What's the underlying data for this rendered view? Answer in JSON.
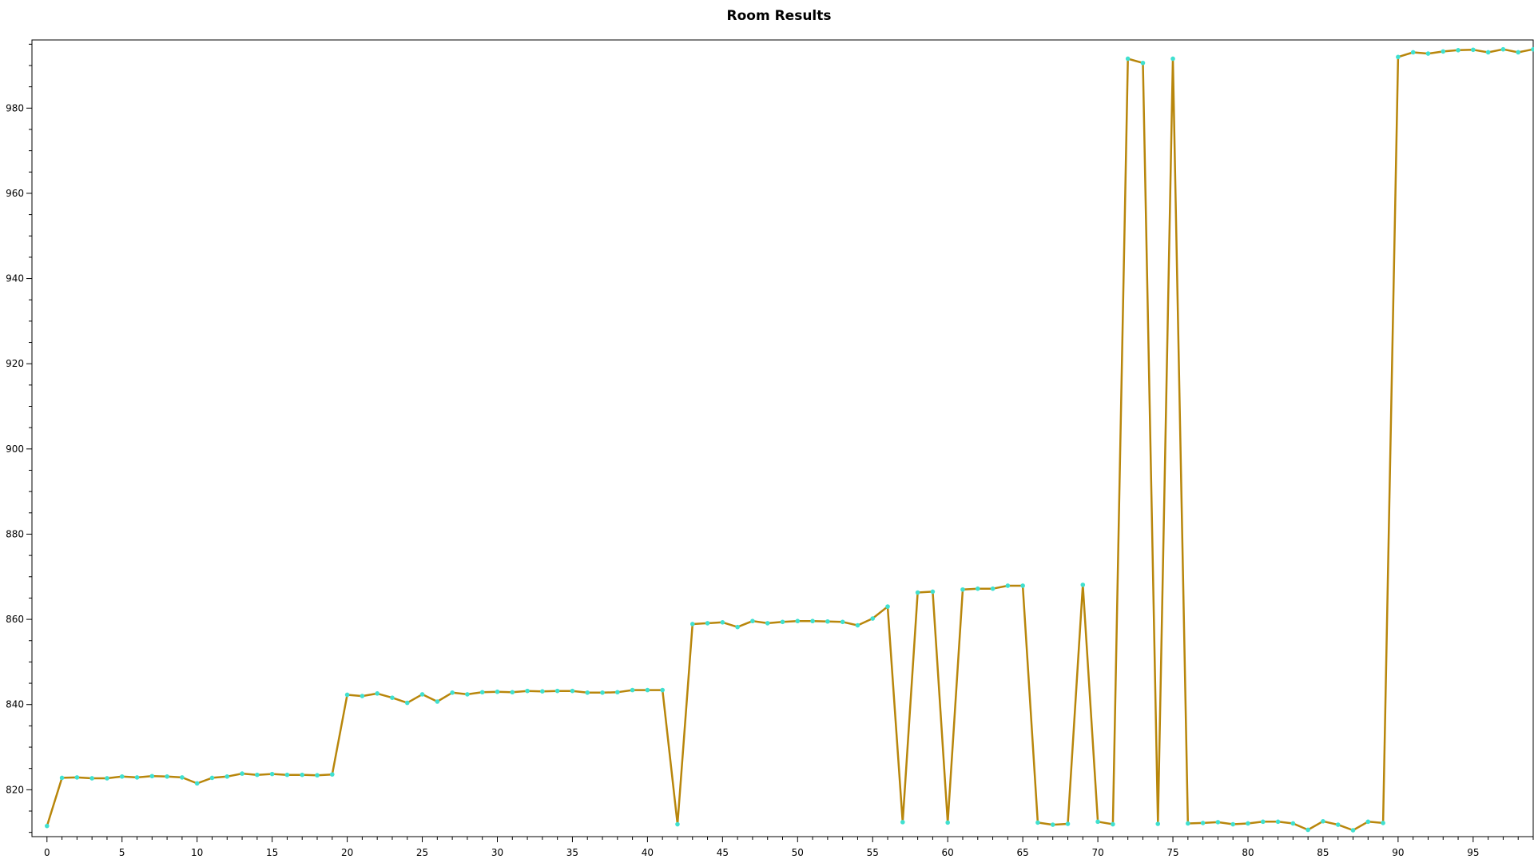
{
  "chart_data": {
    "type": "line",
    "title": "Room Results",
    "xlabel": "",
    "ylabel": "",
    "xlim": [
      -1,
      99
    ],
    "ylim": [
      809,
      996
    ],
    "x_ticks": [
      0,
      5,
      10,
      15,
      20,
      25,
      30,
      35,
      40,
      45,
      50,
      55,
      60,
      65,
      70,
      75,
      80,
      85,
      90,
      95
    ],
    "y_ticks": [
      820,
      840,
      860,
      880,
      900,
      920,
      940,
      960,
      980
    ],
    "line_color": "#b8860b",
    "marker_color": "#40e0d0",
    "grid": false,
    "series": [
      {
        "x": [
          0,
          1,
          2,
          3,
          4,
          5,
          6,
          7,
          8,
          9,
          10,
          11,
          12,
          13,
          14,
          15,
          16,
          17,
          18,
          19,
          20,
          21,
          22,
          23,
          24,
          25,
          26,
          27,
          28,
          29,
          30,
          31,
          32,
          33,
          34,
          35,
          36,
          37,
          38,
          39,
          40,
          41,
          42,
          43,
          44,
          45,
          46,
          47,
          48,
          49,
          50,
          51,
          52,
          53,
          54,
          55,
          56,
          57,
          58,
          59,
          60,
          61,
          62,
          63,
          64,
          65,
          66,
          67,
          68,
          69,
          70,
          71,
          72,
          73,
          74,
          75,
          76,
          77,
          78,
          79,
          80,
          81,
          82,
          83,
          84,
          85,
          86,
          87,
          88,
          89,
          90,
          91,
          92,
          93,
          94,
          95,
          96,
          97,
          98,
          99
        ],
        "values": [
          811.5,
          822.8,
          822.9,
          822.7,
          822.7,
          823.1,
          822.9,
          823.2,
          823.1,
          822.9,
          821.5,
          822.8,
          823.1,
          823.8,
          823.5,
          823.7,
          823.5,
          823.5,
          823.4,
          823.6,
          842.3,
          842.0,
          842.6,
          841.6,
          840.4,
          842.4,
          840.7,
          842.8,
          842.4,
          842.9,
          843.0,
          842.9,
          843.2,
          843.1,
          843.2,
          843.2,
          842.8,
          842.8,
          842.9,
          843.4,
          843.4,
          843.4,
          811.9,
          858.9,
          859.1,
          859.3,
          858.2,
          859.6,
          859.1,
          859.4,
          859.6,
          859.6,
          859.5,
          859.4,
          858.6,
          860.2,
          863.0,
          812.4,
          866.3,
          866.5,
          812.3,
          867.0,
          867.2,
          867.2,
          867.9,
          867.9,
          812.3,
          811.8,
          812.0,
          868.1,
          812.5,
          811.9,
          991.6,
          990.6,
          812.0,
          991.6,
          812.1,
          812.2,
          812.4,
          811.9,
          812.1,
          812.5,
          812.5,
          812.1,
          810.6,
          812.6,
          811.8,
          810.5,
          812.5,
          812.2,
          992.0,
          993.1,
          992.8,
          993.3,
          993.6,
          993.7,
          993.1,
          993.8,
          993.1,
          993.8
        ]
      }
    ]
  }
}
